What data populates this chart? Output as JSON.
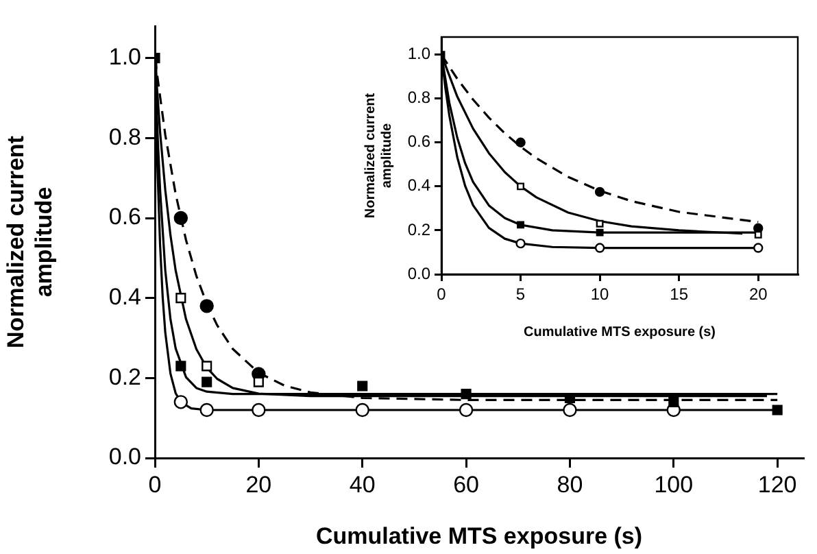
{
  "chart_data": [
    {
      "type": "scatter",
      "xlabel": "Cumulative MTS exposure (s)",
      "ylabel": "Normalized current amplitude",
      "xlim": [
        0,
        125
      ],
      "ylim": [
        0,
        1.08
      ],
      "xticks": [
        0,
        20,
        40,
        60,
        80,
        100,
        120
      ],
      "yticks": [
        {
          "value": 0,
          "label": "0.0"
        },
        {
          "value": 0.2,
          "label": "0.2"
        },
        {
          "value": 0.4,
          "label": "0.4"
        },
        {
          "value": 0.6,
          "label": "0.6"
        },
        {
          "value": 0.8,
          "label": "0.8"
        },
        {
          "value": 1,
          "label": "1.0"
        }
      ],
      "grid": false,
      "legend": false,
      "series": [
        {
          "type": "line",
          "color": "#000000",
          "marker": "none",
          "line_style": "dashed",
          "x": [
            0,
            2,
            4,
            6,
            8,
            10,
            12,
            15,
            20,
            25,
            30,
            40,
            60,
            120
          ],
          "values": [
            1,
            0.808,
            0.66,
            0.545,
            0.455,
            0.386,
            0.332,
            0.273,
            0.213,
            0.181,
            0.164,
            0.15,
            0.145,
            0.145
          ]
        },
        {
          "type": "line",
          "color": "#000000",
          "marker": "none",
          "line_style": "solid",
          "x": [
            0,
            1,
            2,
            3,
            4,
            6,
            8,
            10,
            12,
            15,
            20,
            30,
            60,
            118
          ],
          "values": [
            1,
            0.815,
            0.67,
            0.557,
            0.469,
            0.347,
            0.272,
            0.226,
            0.198,
            0.175,
            0.161,
            0.155,
            0.155,
            0.155
          ]
        },
        {
          "type": "line",
          "color": "#000000",
          "marker": "none",
          "line_style": "solid",
          "x": [
            0,
            0.5,
            1,
            2,
            3,
            4,
            6,
            8,
            10,
            15,
            120
          ],
          "values": [
            1,
            0.814,
            0.67,
            0.469,
            0.347,
            0.274,
            0.202,
            0.175,
            0.166,
            0.16,
            0.16
          ]
        },
        {
          "type": "line",
          "color": "#000000",
          "marker": "none",
          "line_style": "solid",
          "x": [
            0,
            0.25,
            0.5,
            1,
            1.5,
            2,
            3,
            4,
            5,
            7,
            10,
            120
          ],
          "values": [
            1,
            0.848,
            0.723,
            0.533,
            0.402,
            0.314,
            0.211,
            0.162,
            0.14,
            0.124,
            0.12,
            0.12
          ]
        },
        {
          "type": "scatter",
          "color": "#000000",
          "marker": "square",
          "x": [
            0,
            5,
            10,
            40,
            60,
            80,
            100,
            120
          ],
          "values": [
            1,
            0.23,
            0.19,
            0.18,
            0.16,
            0.15,
            0.14,
            0.12
          ]
        },
        {
          "type": "scatter",
          "color": "#ffffff",
          "marker": "square",
          "x": [
            5,
            10,
            20
          ],
          "values": [
            0.4,
            0.23,
            0.19
          ]
        },
        {
          "type": "scatter",
          "color": "#000000",
          "marker": "circle",
          "x": [
            5,
            10,
            20
          ],
          "values": [
            0.6,
            0.38,
            0.21
          ]
        },
        {
          "type": "scatter",
          "color": "#ffffff",
          "marker": "circle",
          "x": [
            5,
            10,
            20,
            40,
            60,
            80,
            100
          ],
          "values": [
            0.14,
            0.12,
            0.12,
            0.12,
            0.12,
            0.12,
            0.12
          ]
        }
      ]
    },
    {
      "type": "scatter",
      "xlabel": "Cumulative MTS exposure (s)",
      "ylabel": "Normalized current amplitude",
      "xlim": [
        0,
        22.5
      ],
      "ylim": [
        0,
        1.08
      ],
      "xticks": [
        0,
        5,
        10,
        15,
        20
      ],
      "yticks": [
        {
          "value": 0,
          "label": "0.0"
        },
        {
          "value": 0.2,
          "label": "0.2"
        },
        {
          "value": 0.4,
          "label": "0.4"
        },
        {
          "value": 0.6,
          "label": "0.6"
        },
        {
          "value": 0.8,
          "label": "0.8"
        },
        {
          "value": 1,
          "label": "1.0"
        }
      ],
      "grid": false,
      "legend": false,
      "series": [
        {
          "type": "line",
          "color": "#000000",
          "marker": "none",
          "line_style": "dashed",
          "x": [
            0,
            1,
            2,
            3,
            4,
            5,
            6,
            8,
            10,
            12,
            15,
            20
          ],
          "values": [
            1,
            0.89,
            0.795,
            0.713,
            0.642,
            0.581,
            0.528,
            0.443,
            0.38,
            0.333,
            0.284,
            0.238
          ]
        },
        {
          "type": "line",
          "color": "#000000",
          "marker": "none",
          "line_style": "solid",
          "x": [
            0,
            1,
            2,
            3,
            4,
            5,
            6,
            8,
            10,
            12,
            15,
            19
          ],
          "values": [
            1,
            0.809,
            0.663,
            0.551,
            0.465,
            0.4,
            0.35,
            0.281,
            0.242,
            0.218,
            0.2,
            0.185
          ]
        },
        {
          "type": "line",
          "color": "#000000",
          "marker": "none",
          "line_style": "solid",
          "x": [
            0,
            0.5,
            1,
            1.5,
            2,
            3,
            4,
            5,
            7,
            10,
            20
          ],
          "values": [
            1,
            0.781,
            0.622,
            0.505,
            0.42,
            0.313,
            0.256,
            0.225,
            0.2,
            0.19,
            0.19
          ]
        },
        {
          "type": "line",
          "color": "#000000",
          "marker": "none",
          "line_style": "solid",
          "x": [
            0,
            0.25,
            0.5,
            1,
            1.5,
            2,
            3,
            4,
            5,
            7,
            10,
            20
          ],
          "values": [
            1,
            0.848,
            0.723,
            0.533,
            0.402,
            0.314,
            0.211,
            0.162,
            0.14,
            0.124,
            0.12,
            0.12
          ]
        },
        {
          "type": "scatter",
          "color": "#000000",
          "marker": "square",
          "x": [
            0,
            5,
            10
          ],
          "values": [
            1,
            0.225,
            0.19
          ]
        },
        {
          "type": "scatter",
          "color": "#ffffff",
          "marker": "square",
          "x": [
            5,
            10,
            20
          ],
          "values": [
            0.4,
            0.23,
            0.18
          ]
        },
        {
          "type": "scatter",
          "color": "#000000",
          "marker": "circle",
          "x": [
            5,
            10,
            20
          ],
          "values": [
            0.6,
            0.375,
            0.21
          ]
        },
        {
          "type": "scatter",
          "color": "#ffffff",
          "marker": "circle",
          "x": [
            5,
            10,
            20
          ],
          "values": [
            0.14,
            0.12,
            0.12
          ]
        }
      ]
    }
  ]
}
